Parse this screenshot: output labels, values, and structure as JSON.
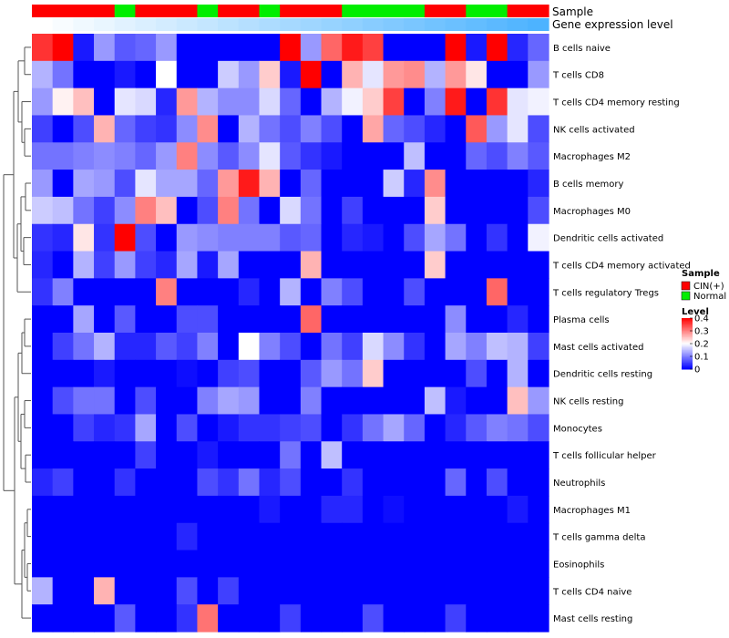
{
  "chart_data": {
    "type": "heatmap",
    "annotation_labels": {
      "sample": "Sample",
      "expression": "Gene expression level"
    },
    "columns": [
      {
        "sample": "CIN(+)",
        "expr": 0.0
      },
      {
        "sample": "CIN(+)",
        "expr": 0.02
      },
      {
        "sample": "CIN(+)",
        "expr": 0.04
      },
      {
        "sample": "CIN(+)",
        "expr": 0.06
      },
      {
        "sample": "Normal",
        "expr": 0.08
      },
      {
        "sample": "CIN(+)",
        "expr": 0.1
      },
      {
        "sample": "CIN(+)",
        "expr": 0.12
      },
      {
        "sample": "CIN(+)",
        "expr": 0.14
      },
      {
        "sample": "Normal",
        "expr": 0.16
      },
      {
        "sample": "CIN(+)",
        "expr": 0.18
      },
      {
        "sample": "CIN(+)",
        "expr": 0.2
      },
      {
        "sample": "Normal",
        "expr": 0.22
      },
      {
        "sample": "CIN(+)",
        "expr": 0.24
      },
      {
        "sample": "CIN(+)",
        "expr": 0.26
      },
      {
        "sample": "CIN(+)",
        "expr": 0.28
      },
      {
        "sample": "Normal",
        "expr": 0.3
      },
      {
        "sample": "Normal",
        "expr": 0.32
      },
      {
        "sample": "Normal",
        "expr": 0.34
      },
      {
        "sample": "Normal",
        "expr": 0.36
      },
      {
        "sample": "CIN(+)",
        "expr": 0.38
      },
      {
        "sample": "CIN(+)",
        "expr": 0.4
      },
      {
        "sample": "Normal",
        "expr": 0.42
      },
      {
        "sample": "Normal",
        "expr": 0.44
      },
      {
        "sample": "CIN(+)",
        "expr": 0.46
      },
      {
        "sample": "CIN(+)",
        "expr": 0.48
      }
    ],
    "rows": [
      "B cells naive",
      "T cells CD8",
      "T cells CD4 memory resting",
      "NK cells activated",
      "Macrophages M2",
      "B cells memory",
      "Macrophages M0",
      "Dendritic cells activated",
      "T cells CD4 memory activated",
      "T cells regulatory  Tregs",
      "Plasma cells",
      "Mast cells activated",
      "Dendritic cells resting",
      "NK cells resting",
      "Monocytes",
      "T cells follicular helper",
      "Neutrophils",
      "Macrophages M1",
      "T cells gamma delta",
      "Eosinophils",
      "T cells CD4 naive",
      "Mast cells resting"
    ],
    "values": [
      [
        0.36,
        0.42,
        0.02,
        0.12,
        0.07,
        0.08,
        0.12,
        0.0,
        0.0,
        0.0,
        0.0,
        0.0,
        0.4,
        0.12,
        0.32,
        0.38,
        0.35,
        0.0,
        0.0,
        0.0,
        0.4,
        0.02,
        0.42,
        0.03,
        0.08
      ],
      [
        0.14,
        0.09,
        0.0,
        0.0,
        0.02,
        0.0,
        0.2,
        0.0,
        0.0,
        0.16,
        0.12,
        0.24,
        0.02,
        0.42,
        0.0,
        0.26,
        0.18,
        0.28,
        0.29,
        0.14,
        0.28,
        0.22,
        0.0,
        0.0,
        0.12
      ],
      [
        0.12,
        0.21,
        0.25,
        0.0,
        0.18,
        0.17,
        0.03,
        0.28,
        0.14,
        0.11,
        0.11,
        0.17,
        0.08,
        0.0,
        0.14,
        0.19,
        0.24,
        0.35,
        0.0,
        0.1,
        0.38,
        0.0,
        0.36,
        0.18,
        0.19
      ],
      [
        0.05,
        0.0,
        0.06,
        0.26,
        0.08,
        0.05,
        0.04,
        0.11,
        0.29,
        0.0,
        0.14,
        0.09,
        0.06,
        0.1,
        0.06,
        0.0,
        0.27,
        0.08,
        0.06,
        0.03,
        0.0,
        0.33,
        0.12,
        0.18,
        0.06
      ],
      [
        0.09,
        0.09,
        0.1,
        0.11,
        0.1,
        0.08,
        0.12,
        0.3,
        0.11,
        0.07,
        0.11,
        0.18,
        0.07,
        0.04,
        0.02,
        0.0,
        0.0,
        0.0,
        0.15,
        0.0,
        0.0,
        0.08,
        0.06,
        0.1,
        0.07
      ],
      [
        0.12,
        0.0,
        0.13,
        0.12,
        0.06,
        0.18,
        0.13,
        0.13,
        0.08,
        0.28,
        0.38,
        0.26,
        0.0,
        0.08,
        0.0,
        0.0,
        0.0,
        0.16,
        0.03,
        0.29,
        0.0,
        0.0,
        0.0,
        0.0,
        0.03
      ],
      [
        0.16,
        0.15,
        0.09,
        0.05,
        0.11,
        0.3,
        0.25,
        0.0,
        0.06,
        0.3,
        0.09,
        0.0,
        0.17,
        0.09,
        0.0,
        0.05,
        0.0,
        0.0,
        0.0,
        0.24,
        0.0,
        0.0,
        0.0,
        0.0,
        0.06
      ],
      [
        0.04,
        0.03,
        0.22,
        0.04,
        0.42,
        0.06,
        0.0,
        0.12,
        0.11,
        0.1,
        0.1,
        0.1,
        0.07,
        0.08,
        0.0,
        0.03,
        0.02,
        0.0,
        0.06,
        0.13,
        0.09,
        0.0,
        0.04,
        0.0,
        0.19
      ],
      [
        0.03,
        0.0,
        0.14,
        0.05,
        0.12,
        0.05,
        0.03,
        0.13,
        0.02,
        0.13,
        0.0,
        0.0,
        0.0,
        0.26,
        0.0,
        0.0,
        0.0,
        0.0,
        0.0,
        0.24,
        0.0,
        0.0,
        0.0,
        0.0,
        0.0
      ],
      [
        0.04,
        0.1,
        0.0,
        0.0,
        0.0,
        0.0,
        0.3,
        0.0,
        0.0,
        0.0,
        0.03,
        0.0,
        0.14,
        0.0,
        0.1,
        0.06,
        0.0,
        0.0,
        0.06,
        0.0,
        0.0,
        0.0,
        0.32,
        0.0,
        0.0
      ],
      [
        0.0,
        0.0,
        0.13,
        0.0,
        0.07,
        0.0,
        0.0,
        0.06,
        0.06,
        0.0,
        0.0,
        0.0,
        0.0,
        0.32,
        0.0,
        0.0,
        0.0,
        0.0,
        0.0,
        0.0,
        0.11,
        0.0,
        0.0,
        0.03,
        0.0
      ],
      [
        0.0,
        0.05,
        0.09,
        0.14,
        0.03,
        0.03,
        0.07,
        0.05,
        0.1,
        0.0,
        0.2,
        0.1,
        0.06,
        0.0,
        0.09,
        0.05,
        0.17,
        0.11,
        0.04,
        0.0,
        0.13,
        0.1,
        0.15,
        0.14,
        0.05
      ],
      [
        0.0,
        0.0,
        0.0,
        0.02,
        0.0,
        0.0,
        0.0,
        0.01,
        0.0,
        0.05,
        0.06,
        0.0,
        0.0,
        0.07,
        0.12,
        0.09,
        0.24,
        0.0,
        0.0,
        0.0,
        0.0,
        0.06,
        0.0,
        0.14,
        0.0
      ],
      [
        0.0,
        0.06,
        0.09,
        0.09,
        0.0,
        0.06,
        0.0,
        0.0,
        0.1,
        0.13,
        0.12,
        0.0,
        0.0,
        0.1,
        0.0,
        0.0,
        0.0,
        0.0,
        0.0,
        0.15,
        0.02,
        0.0,
        0.0,
        0.25,
        0.12
      ],
      [
        0.0,
        0.0,
        0.05,
        0.03,
        0.04,
        0.13,
        0.0,
        0.06,
        0.0,
        0.02,
        0.04,
        0.04,
        0.05,
        0.06,
        0.0,
        0.04,
        0.09,
        0.13,
        0.08,
        0.0,
        0.03,
        0.07,
        0.1,
        0.09,
        0.06
      ],
      [
        0.0,
        0.0,
        0.0,
        0.0,
        0.0,
        0.05,
        0.0,
        0.0,
        0.02,
        0.0,
        0.0,
        0.0,
        0.09,
        0.0,
        0.15,
        0.0,
        0.0,
        0.0,
        0.0,
        0.0,
        0.0,
        0.0,
        0.0,
        0.0,
        0.0
      ],
      [
        0.03,
        0.05,
        0.0,
        0.0,
        0.04,
        0.0,
        0.0,
        0.0,
        0.06,
        0.04,
        0.09,
        0.03,
        0.06,
        0.0,
        0.0,
        0.04,
        0.0,
        0.0,
        0.0,
        0.0,
        0.08,
        0.0,
        0.06,
        0.0,
        0.0
      ],
      [
        0.0,
        0.0,
        0.0,
        0.0,
        0.0,
        0.0,
        0.0,
        0.0,
        0.0,
        0.0,
        0.0,
        0.02,
        0.0,
        0.0,
        0.03,
        0.03,
        0.0,
        0.01,
        0.0,
        0.0,
        0.0,
        0.0,
        0.0,
        0.02,
        0.0
      ],
      [
        0.0,
        0.0,
        0.0,
        0.0,
        0.0,
        0.0,
        0.0,
        0.03,
        0.0,
        0.0,
        0.0,
        0.0,
        0.0,
        0.0,
        0.0,
        0.0,
        0.0,
        0.0,
        0.0,
        0.0,
        0.0,
        0.0,
        0.0,
        0.0,
        0.0
      ],
      [
        0.0,
        0.0,
        0.0,
        0.0,
        0.0,
        0.0,
        0.0,
        0.0,
        0.0,
        0.0,
        0.0,
        0.0,
        0.0,
        0.0,
        0.0,
        0.0,
        0.0,
        0.0,
        0.0,
        0.0,
        0.0,
        0.0,
        0.0,
        0.0,
        0.0
      ],
      [
        0.14,
        0.0,
        0.0,
        0.26,
        0.0,
        0.0,
        0.0,
        0.06,
        0.0,
        0.05,
        0.0,
        0.0,
        0.0,
        0.0,
        0.0,
        0.0,
        0.0,
        0.0,
        0.0,
        0.0,
        0.0,
        0.0,
        0.0,
        0.0,
        0.0
      ],
      [
        0.0,
        0.0,
        0.0,
        0.0,
        0.07,
        0.0,
        0.0,
        0.04,
        0.31,
        0.0,
        0.0,
        0.0,
        0.05,
        0.0,
        0.0,
        0.0,
        0.06,
        0.0,
        0.0,
        0.0,
        0.05,
        0.0,
        0.0,
        0.0,
        0.0
      ]
    ],
    "sample_legend": {
      "title": "Sample",
      "items": [
        {
          "label": "CIN(+)",
          "color": "#ff0000"
        },
        {
          "label": "Normal",
          "color": "#00ee00"
        }
      ]
    },
    "level_legend": {
      "title": "Level",
      "range": [
        0,
        0.4
      ],
      "ticks": [
        "0.4",
        "0.3",
        "0.2",
        "0.1",
        "0"
      ],
      "tick_values": [
        0.4,
        0.3,
        0.2,
        0.1,
        0
      ]
    },
    "colors": {
      "low": "#0000ff",
      "mid": "#ffffff",
      "high": "#ff0000",
      "expr_low": "#ffffff",
      "expr_high": "#4db3ff"
    }
  }
}
